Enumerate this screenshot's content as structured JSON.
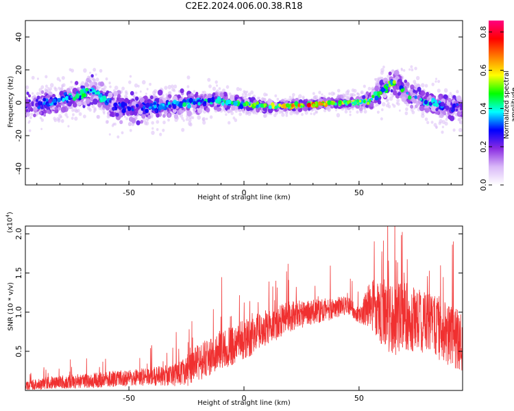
{
  "title": "C2E2.2024.006.00.38.R18",
  "chart_data": [
    {
      "type": "heatmap",
      "name": "spectrogram",
      "xlabel": "Height of straight line (km)",
      "ylabel": "Frequency (Hz)",
      "xlim": [
        -95,
        95
      ],
      "ylim": [
        -50,
        50
      ],
      "xticks": [
        -50,
        0,
        50
      ],
      "yticks": [
        -40,
        -20,
        0,
        20,
        40
      ],
      "ridge_profile": {
        "x": [
          -95,
          -85,
          -75,
          -65,
          -60,
          -55,
          -50,
          -45,
          -35,
          -25,
          -15,
          -5,
          0,
          10,
          20,
          30,
          40,
          50,
          55,
          60,
          65,
          70,
          75,
          85,
          95
        ],
        "center_freq": [
          -2,
          0,
          3,
          8,
          1,
          -2,
          -4,
          -3,
          -2,
          0,
          1,
          0,
          -1,
          -2,
          -2,
          -1,
          0,
          0,
          2,
          7,
          12,
          7,
          3,
          -2,
          -3
        ],
        "spread": [
          7,
          7,
          7,
          9,
          8,
          8,
          8,
          8,
          7,
          7,
          6,
          5,
          4,
          3,
          3,
          3,
          3,
          4,
          5,
          7,
          8,
          7,
          7,
          7,
          7
        ],
        "peak_amplitude": [
          0.3,
          0.35,
          0.45,
          0.5,
          0.4,
          0.35,
          0.3,
          0.35,
          0.4,
          0.45,
          0.45,
          0.5,
          0.55,
          0.6,
          0.7,
          0.8,
          0.7,
          0.65,
          0.55,
          0.5,
          0.6,
          0.5,
          0.45,
          0.4,
          0.3
        ]
      },
      "colorbar": {
        "label": "Normalized spectral amplitude",
        "ticks": [
          "0.0",
          "0.2",
          "0.4",
          "0.6",
          "0.8"
        ],
        "range": [
          0,
          0.86
        ],
        "colors": [
          "#ffffff",
          "#d9b8f8",
          "#8a2be2",
          "#0000ff",
          "#00ffff",
          "#00ff00",
          "#ffff00",
          "#ff8000",
          "#ff0000",
          "#ff0080"
        ]
      }
    },
    {
      "type": "line",
      "name": "snr",
      "xlabel": "Height of straight line (km)",
      "ylabel": "SNR (10 * v/v)",
      "y_multiplier": "(x10",
      "y_multiplier_exp": "4",
      "y_multiplier_close": ")",
      "xlim": [
        -95,
        95
      ],
      "ylim": [
        0,
        2.1
      ],
      "xticks": [
        -50,
        0,
        50
      ],
      "yticks": [
        "0.5",
        "1.0",
        "1.5",
        "2.0"
      ],
      "color": "#f03030",
      "envelope": {
        "x": [
          -95,
          -85,
          -70,
          -55,
          -40,
          -30,
          -25,
          -20,
          -10,
          0,
          10,
          20,
          30,
          40,
          45,
          50,
          55,
          60,
          65,
          70,
          80,
          90,
          95
        ],
        "base": [
          0.05,
          0.1,
          0.12,
          0.15,
          0.18,
          0.2,
          0.25,
          0.35,
          0.5,
          0.65,
          0.8,
          0.95,
          1.0,
          1.05,
          1.1,
          0.95,
          1.1,
          1.0,
          0.9,
          0.95,
          0.85,
          0.7,
          0.6
        ],
        "noise": [
          0.08,
          0.1,
          0.12,
          0.13,
          0.15,
          0.18,
          0.25,
          0.3,
          0.32,
          0.32,
          0.3,
          0.25,
          0.2,
          0.18,
          0.15,
          0.12,
          0.4,
          0.55,
          0.6,
          0.55,
          0.5,
          0.5,
          0.5
        ]
      }
    }
  ]
}
